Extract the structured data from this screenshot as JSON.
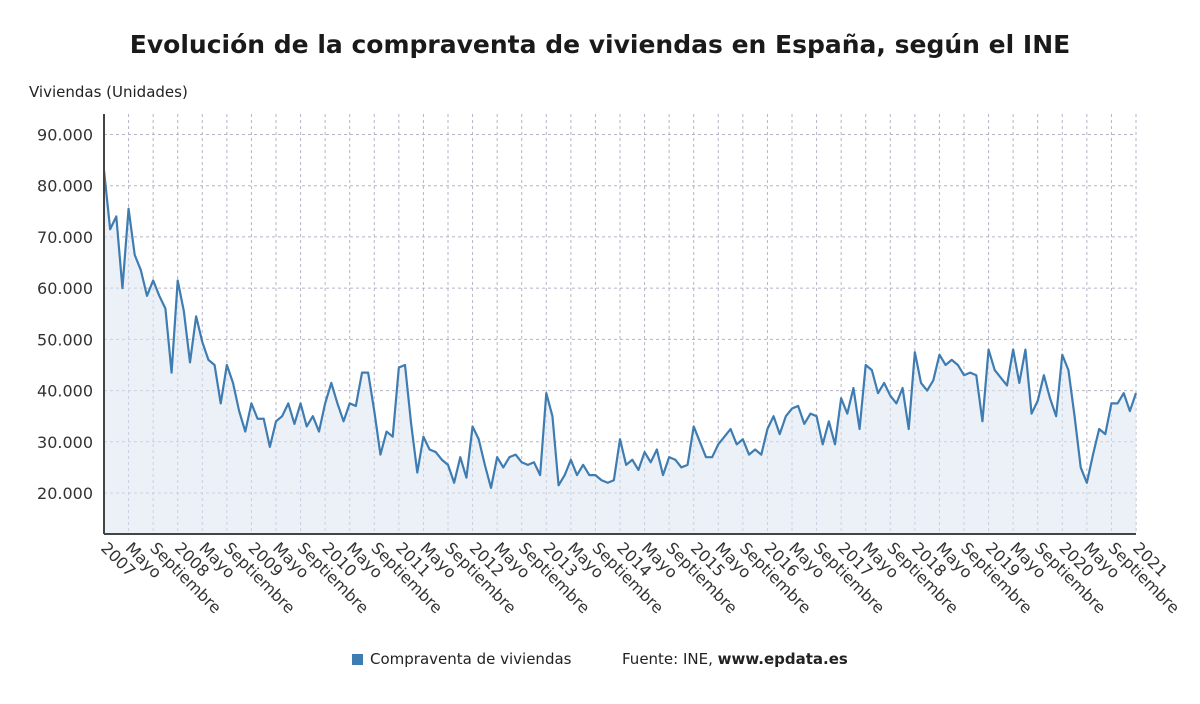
{
  "colors": {
    "series": "#3e7cb1",
    "area": "#dce6f2",
    "grid": "#b5b5c5",
    "axis": "#444444"
  },
  "chart_data": {
    "type": "area",
    "title": "Evolución de la compraventa de viviendas en España, según el INE",
    "ylabel": "Viviendas (Unidades)",
    "xlabel": "",
    "ylim": [
      12000,
      94000
    ],
    "yticks": [
      20000,
      30000,
      40000,
      50000,
      60000,
      70000,
      80000,
      90000
    ],
    "ytick_labels": [
      "20.000",
      "30.000",
      "40.000",
      "50.000",
      "60.000",
      "70.000",
      "80.000",
      "90.000"
    ],
    "grid": true,
    "x_start": "2007-01",
    "xtick_labels": [
      {
        "month": 0,
        "label": "2007"
      },
      {
        "month": 4,
        "label": "Mayo"
      },
      {
        "month": 8,
        "label": "Septiembre"
      },
      {
        "month": 12,
        "label": "2008"
      },
      {
        "month": 16,
        "label": "Mayo"
      },
      {
        "month": 20,
        "label": "Septiembre"
      },
      {
        "month": 24,
        "label": "2009"
      },
      {
        "month": 28,
        "label": "Mayo"
      },
      {
        "month": 32,
        "label": "Septiembre"
      },
      {
        "month": 36,
        "label": "2010"
      },
      {
        "month": 40,
        "label": "Mayo"
      },
      {
        "month": 44,
        "label": "Septiembre"
      },
      {
        "month": 48,
        "label": "2011"
      },
      {
        "month": 52,
        "label": "Mayo"
      },
      {
        "month": 56,
        "label": "Septiembre"
      },
      {
        "month": 60,
        "label": "2012"
      },
      {
        "month": 64,
        "label": "Mayo"
      },
      {
        "month": 68,
        "label": "Septiembre"
      },
      {
        "month": 72,
        "label": "2013"
      },
      {
        "month": 76,
        "label": "Mayo"
      },
      {
        "month": 80,
        "label": "Septiembre"
      },
      {
        "month": 84,
        "label": "2014"
      },
      {
        "month": 88,
        "label": "Mayo"
      },
      {
        "month": 92,
        "label": "Septiembre"
      },
      {
        "month": 96,
        "label": "2015"
      },
      {
        "month": 100,
        "label": "Mayo"
      },
      {
        "month": 104,
        "label": "Septiembre"
      },
      {
        "month": 108,
        "label": "2016"
      },
      {
        "month": 112,
        "label": "Mayo"
      },
      {
        "month": 116,
        "label": "Septiembre"
      },
      {
        "month": 120,
        "label": "2017"
      },
      {
        "month": 124,
        "label": "Mayo"
      },
      {
        "month": 128,
        "label": "Septiembre"
      },
      {
        "month": 132,
        "label": "2018"
      },
      {
        "month": 136,
        "label": "Mayo"
      },
      {
        "month": 140,
        "label": "Septiembre"
      },
      {
        "month": 144,
        "label": "2019"
      },
      {
        "month": 148,
        "label": "Mayo"
      },
      {
        "month": 152,
        "label": "Septiembre"
      },
      {
        "month": 156,
        "label": "2020"
      },
      {
        "month": 160,
        "label": "Mayo"
      },
      {
        "month": 164,
        "label": "Septiembre"
      },
      {
        "month": 168,
        "label": "2021"
      }
    ],
    "series": [
      {
        "name": "Compraventa de viviendas",
        "values": [
          83000,
          71500,
          74000,
          60000,
          75500,
          66500,
          63500,
          58500,
          61500,
          58500,
          56000,
          43500,
          61500,
          55500,
          45500,
          54500,
          49500,
          46000,
          45000,
          37500,
          45000,
          41500,
          36000,
          32000,
          37500,
          34500,
          34500,
          29000,
          34000,
          35000,
          37500,
          33500,
          37500,
          33000,
          35000,
          32000,
          37500,
          41500,
          37500,
          34000,
          37500,
          37000,
          43500,
          43500,
          36000,
          27500,
          32000,
          31000,
          44500,
          45000,
          33500,
          24000,
          31000,
          28500,
          28000,
          26500,
          25500,
          22000,
          27000,
          23000,
          33000,
          30500,
          25500,
          21000,
          27000,
          25000,
          27000,
          27500,
          26000,
          25500,
          26000,
          23500,
          39500,
          35000,
          21500,
          23500,
          26500,
          23500,
          25500,
          23500,
          23500,
          22500,
          22000,
          22500,
          30500,
          25500,
          26500,
          24500,
          28000,
          26000,
          28500,
          23500,
          27000,
          26500,
          25000,
          25500,
          33000,
          30000,
          27000,
          27000,
          29500,
          31000,
          32500,
          29500,
          30500,
          27500,
          28500,
          27500,
          32500,
          35000,
          31500,
          35000,
          36500,
          37000,
          33500,
          35500,
          35000,
          29500,
          34000,
          29500,
          38500,
          35500,
          40500,
          32500,
          45000,
          44000,
          39500,
          41500,
          39000,
          37500,
          40500,
          32500,
          47500,
          41500,
          40000,
          42000,
          47000,
          45000,
          46000,
          45000,
          43000,
          43500,
          43000,
          34000,
          48000,
          44000,
          42500,
          41000,
          48000,
          41500,
          48000,
          35500,
          38000,
          43000,
          38500,
          35000,
          47000,
          44000,
          35000,
          25000,
          22000,
          27500,
          32500,
          31500,
          37500,
          37500,
          39500,
          36000,
          39500
        ]
      }
    ],
    "legend_position": "bottom"
  },
  "source": {
    "prefix": "Fuente: INE, ",
    "site": "www.epdata.es"
  }
}
